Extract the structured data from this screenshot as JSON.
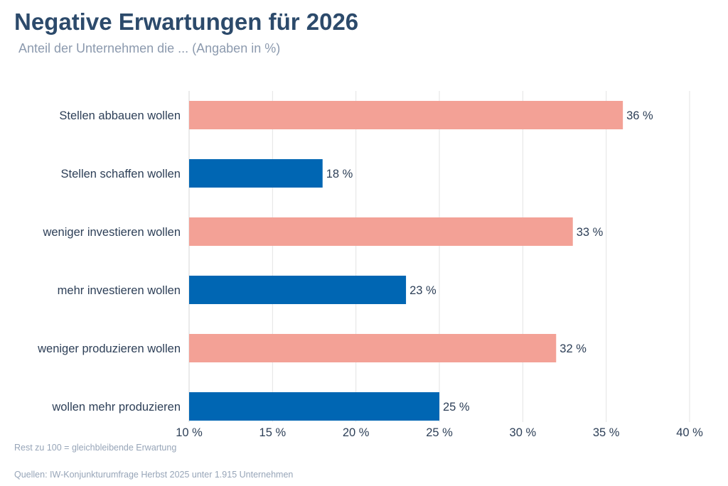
{
  "header": {
    "title": "Negative Erwartungen für 2026",
    "subtitle": "Anteil der Unternehmen die ... (Angaben in %)"
  },
  "footer": {
    "note": "Rest zu 100 = gleichbleibende Erwartung",
    "source": "Quellen: IW-Konjunkturumfrage Herbst 2025 unter 1.915 Unternehmen"
  },
  "colors": {
    "negative": "#f3a196",
    "positive": "#0066b3",
    "grid": "#e3e3e3"
  },
  "chart_data": {
    "type": "bar",
    "orientation": "horizontal",
    "title": "Negative Erwartungen für 2026",
    "subtitle": "Anteil der Unternehmen die ... (Angaben in %)",
    "categories": [
      "Stellen abbauen wollen",
      "Stellen schaffen wollen",
      "weniger investieren wollen",
      "mehr investieren wollen",
      "weniger produzieren wollen",
      "wollen mehr produzieren"
    ],
    "values": [
      36,
      18,
      33,
      23,
      32,
      25
    ],
    "value_labels": [
      "36 %",
      "18 %",
      "33 %",
      "23 %",
      "32 %",
      "25 %"
    ],
    "bar_colors": [
      "#f3a196",
      "#0066b3",
      "#f3a196",
      "#0066b3",
      "#f3a196",
      "#0066b3"
    ],
    "xlim": [
      10,
      40
    ],
    "xticks": [
      10,
      15,
      20,
      25,
      30,
      35,
      40
    ],
    "xtick_labels": [
      "10 %",
      "15 %",
      "20 %",
      "25 %",
      "30 %",
      "35 %",
      "40 %"
    ],
    "grid": true,
    "legend": false
  }
}
